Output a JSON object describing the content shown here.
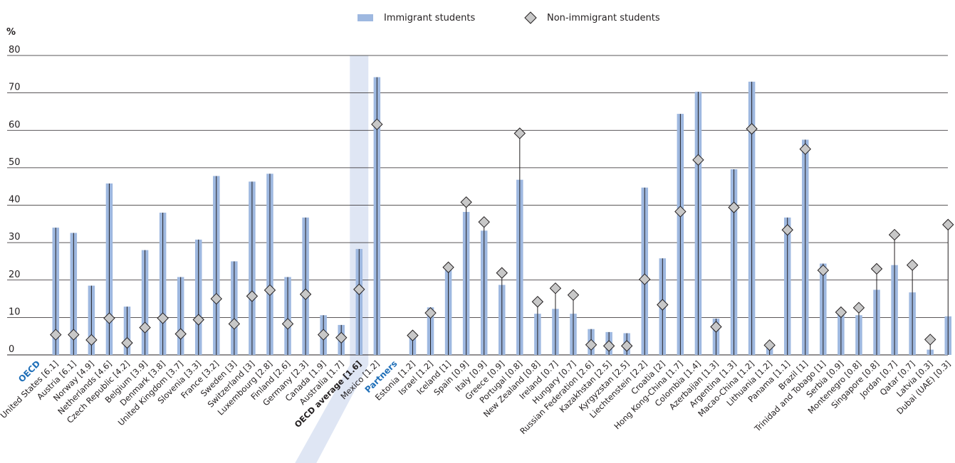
{
  "chart_data": {
    "type": "bar",
    "ylabel": "%",
    "ylim": [
      0,
      80
    ],
    "yticks": [
      "0",
      "10",
      "20",
      "30",
      "40",
      "50",
      "60",
      "70",
      "80"
    ],
    "grid": true,
    "legend_position": "top-center",
    "colors": {
      "bar": "#9eb8e0",
      "marker_fill": "#c8c8c8",
      "marker_stroke": "#231f20",
      "highlight": "#dfe6f4",
      "group_label": "#1f6fb8"
    },
    "groups": [
      {
        "label": "OECD",
        "start_index": 0
      },
      {
        "label": "Partners",
        "start_index": 19
      }
    ],
    "categories": [
      "United States [6.1]",
      "Austria [6.1]",
      "Norway [4.9]",
      "Netherlands [4.6]",
      "Czech Republic [4.2]",
      "Belgium [3.9]",
      "Denmark [3.8]",
      "United Kingdom [3.7]",
      "Slovenia [3.3]",
      "France [3.2]",
      "Sweden [3]",
      "Switzerland [3]",
      "Luxembourg [2.8]",
      "Finland [2.6]",
      "Germany [2.3]",
      "Canada [1.9]",
      "Australia [1.7]",
      "OECD average [1.6]",
      "Mexico [1.2]",
      "Estonia [1.2]",
      "Israel [1.2]",
      "Iceland [1]",
      "Spain [0.9]",
      "Italy [0.9]",
      "Greece [0.9]",
      "Portugal [0.8]",
      "New Zealand [0.8]",
      "Ireland [0.7]",
      "Hungary [0.7]",
      "Russian Federation [2.6]",
      "Kazakhstan [2.5]",
      "Kyrgyzstan [2.5]",
      "Liechtenstein [2.2]",
      "Croatia [2]",
      "Hong Kong-China [1.7]",
      "Colombia [1.4]",
      "Azerbaijan [1.3]",
      "Argentina [1.3]",
      "Macao-China [1.2]",
      "Lithuania [1.2]",
      "Panama [1.1]",
      "Brazil [1]",
      "Trinidad and Tobago [1]",
      "Serbia [0.9]",
      "Montenegro [0.8]",
      "Singapore [0.8]",
      "Jordan [0.7]",
      "Qatar [0.7]",
      "Latvia [0.3]",
      "Dubai (UAE) [0.3]"
    ],
    "highlight_category": "OECD average [1.6]",
    "series": [
      {
        "name": "Immigrant students",
        "type": "bar",
        "values": [
          34,
          32.6,
          18.5,
          45.8,
          12.9,
          28,
          38,
          20.8,
          30.8,
          47.8,
          25,
          46.3,
          48.4,
          20.8,
          36.7,
          10.6,
          8,
          28.3,
          74.2,
          5,
          12.7,
          23.5,
          38.2,
          33.2,
          18.7,
          46.8,
          11,
          12.3,
          11,
          6.9,
          6.1,
          5.8,
          44.7,
          25.8,
          64.4,
          70.3,
          9.7,
          49.6,
          73,
          2.5,
          36.7,
          57.5,
          24.4,
          11.5,
          10.6,
          17.4,
          24,
          16.7,
          1.4,
          10.3
        ]
      },
      {
        "name": "Non-immigrant students",
        "type": "scatter",
        "marker": "diamond",
        "values": [
          5.4,
          5.4,
          4,
          9.8,
          3.2,
          7.3,
          9.8,
          5.6,
          9.4,
          15,
          8.3,
          15.7,
          17.3,
          8.3,
          16.2,
          5.4,
          4.6,
          17.5,
          61.6,
          5.2,
          11.2,
          23.4,
          40.8,
          35.5,
          21.9,
          59.2,
          14.2,
          17.8,
          16,
          2.7,
          2.4,
          2.4,
          20.2,
          13.4,
          38.3,
          52.1,
          7.5,
          39.4,
          60.4,
          2.6,
          33.4,
          55,
          22.6,
          11.4,
          12.6,
          23,
          32.1,
          24,
          4.1,
          34.8
        ]
      }
    ]
  }
}
